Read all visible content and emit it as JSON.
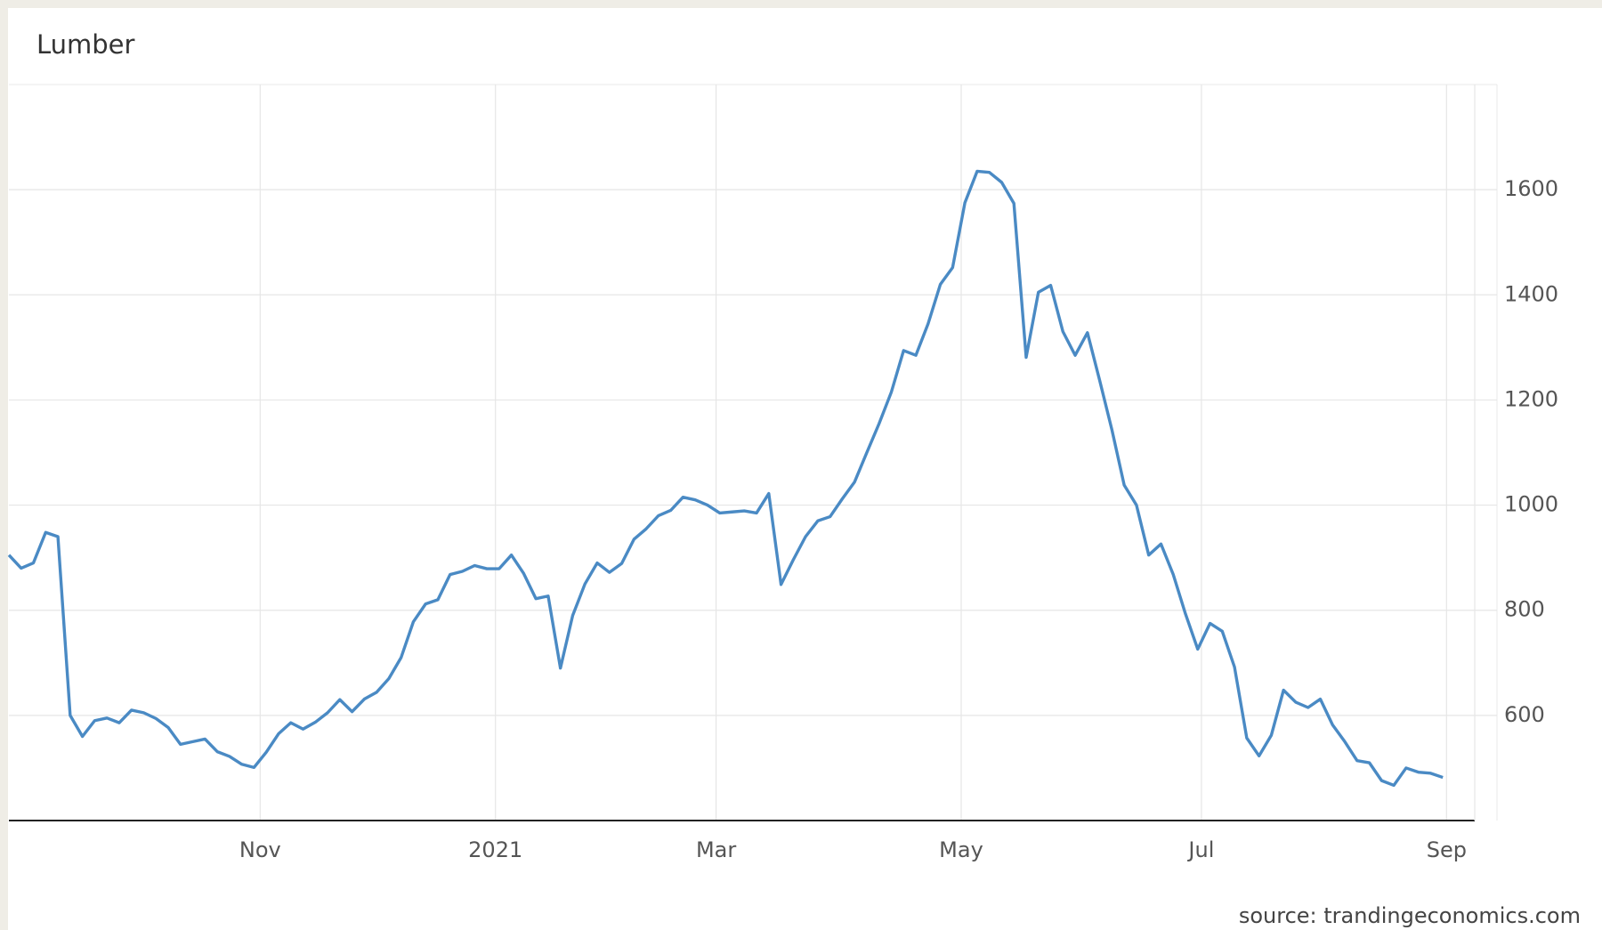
{
  "chart_data": {
    "type": "line",
    "title": "Lumber",
    "source": "source: trandingeconomics.com",
    "color": "#4a8ac4",
    "grid": true,
    "y_axis_side": "right",
    "ylim": [
      400,
      1800
    ],
    "yticks": [
      600,
      800,
      1000,
      1200,
      1400,
      1600
    ],
    "xlim": [
      0,
      119.6
    ],
    "xticks": [
      {
        "value": 20.5,
        "label": "Nov"
      },
      {
        "value": 39.7,
        "label": "2021"
      },
      {
        "value": 57.7,
        "label": "Mar"
      },
      {
        "value": 77.7,
        "label": "May"
      },
      {
        "value": 97.3,
        "label": "Jul"
      },
      {
        "value": 117.3,
        "label": "Sep"
      }
    ],
    "values": [
      905,
      880,
      890,
      948,
      940,
      600,
      560,
      590,
      595,
      586,
      610,
      605,
      594,
      577,
      545,
      550,
      555,
      531,
      522,
      507,
      501,
      530,
      565,
      586,
      574,
      587,
      605,
      630,
      607,
      631,
      644,
      670,
      710,
      778,
      812,
      820,
      868,
      874,
      885,
      879,
      879,
      905,
      870,
      822,
      827,
      690,
      790,
      850,
      890,
      872,
      889,
      935,
      955,
      980,
      990,
      1015,
      1010,
      1000,
      985,
      987,
      989,
      985,
      1022,
      849,
      896,
      940,
      970,
      978,
      1012,
      1044,
      1100,
      1155,
      1215,
      1294,
      1285,
      1345,
      1420,
      1452,
      1575,
      1635,
      1633,
      1614,
      1574,
      1281,
      1405,
      1418,
      1330,
      1285,
      1328,
      1237,
      1143,
      1038,
      1000,
      905,
      926,
      868,
      793,
      726,
      775,
      760,
      692,
      557,
      523,
      562,
      648,
      625,
      615,
      631,
      582,
      550,
      514,
      510,
      476,
      467,
      500,
      492,
      490,
      482
    ]
  }
}
